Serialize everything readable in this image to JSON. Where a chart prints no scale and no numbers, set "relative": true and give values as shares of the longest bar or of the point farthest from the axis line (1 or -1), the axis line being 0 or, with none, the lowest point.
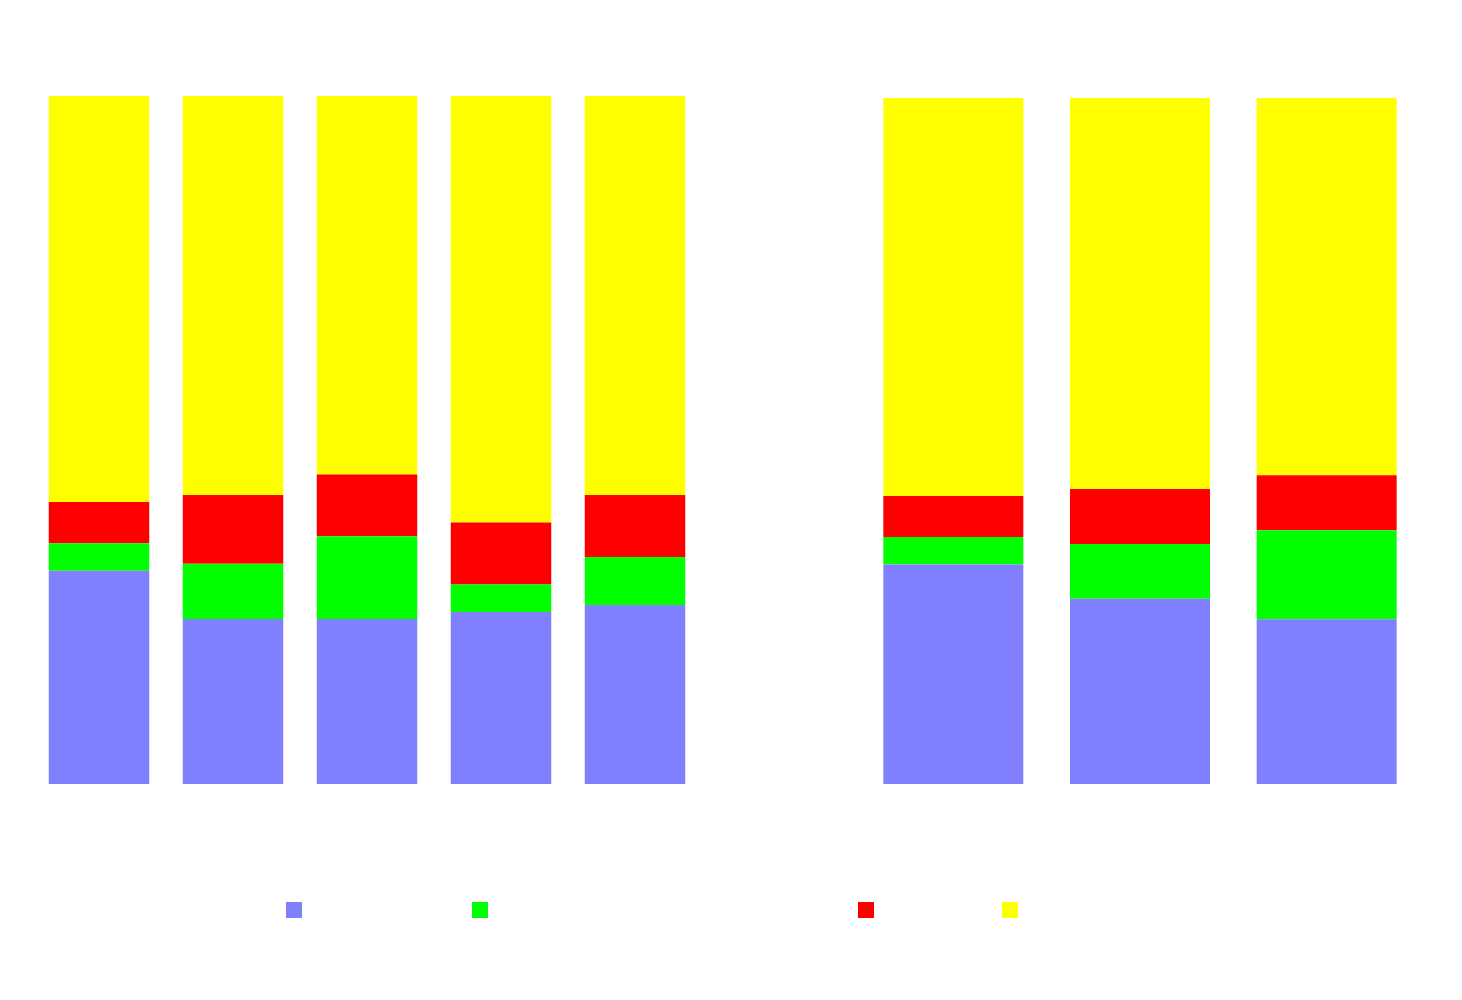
{
  "chart_data": [
    {
      "type": "bar",
      "stacked": true,
      "relative": true,
      "categories": [
        null,
        null,
        null,
        null,
        null
      ],
      "series": [
        {
          "color": "#8080ff",
          "values": [
            0.31,
            0.24,
            0.24,
            0.25,
            0.26
          ]
        },
        {
          "color": "#00ff00",
          "values": [
            0.04,
            0.08,
            0.12,
            0.04,
            0.07
          ]
        },
        {
          "color": "#ff0000",
          "values": [
            0.06,
            0.1,
            0.09,
            0.09,
            0.09
          ]
        },
        {
          "color": "#ffff00",
          "values": [
            0.59,
            0.58,
            0.55,
            0.62,
            0.58
          ]
        }
      ]
    },
    {
      "type": "bar",
      "stacked": true,
      "relative": true,
      "categories": [
        null,
        null,
        null
      ],
      "series": [
        {
          "color": "#8080ff",
          "values": [
            0.32,
            0.27,
            0.24
          ]
        },
        {
          "color": "#00ff00",
          "values": [
            0.04,
            0.08,
            0.13
          ]
        },
        {
          "color": "#ff0000",
          "values": [
            0.06,
            0.08,
            0.08
          ]
        },
        {
          "color": "#ffff00",
          "values": [
            0.58,
            0.57,
            0.55
          ]
        }
      ]
    }
  ]
}
